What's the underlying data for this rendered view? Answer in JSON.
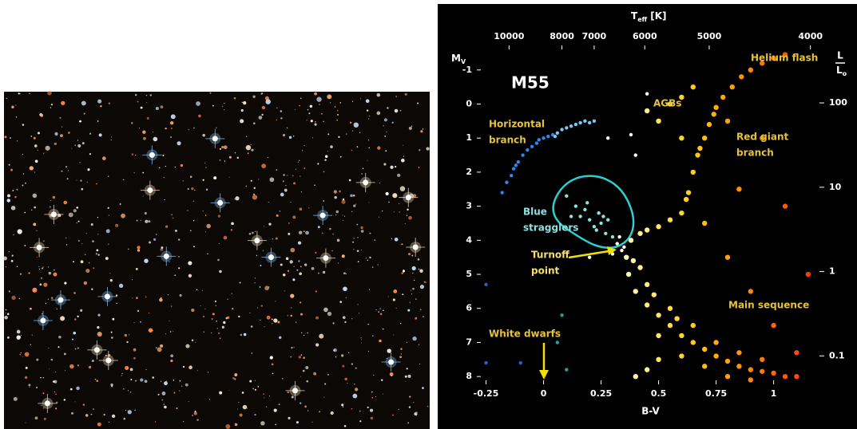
{
  "chart_data": {
    "type": "scatter",
    "xlabel": "B-V",
    "ylabel": [
      "M",
      "V"
    ],
    "x2label": [
      "T",
      "eff",
      " [K]"
    ],
    "y2label": [
      "L",
      "L",
      "o"
    ],
    "xlim": [
      -0.29,
      1.22
    ],
    "ylim": [
      -1.72,
      8.23
    ],
    "y_reversed": true,
    "xticks": [
      -0.25,
      0,
      0.25,
      0.5,
      0.75,
      1
    ],
    "yticks": [
      -1,
      0,
      1,
      2,
      3,
      4,
      5,
      6,
      7,
      8
    ],
    "x2ticks": [
      {
        "value": 10000,
        "b_v": -0.15
      },
      {
        "value": 8000,
        "b_v": 0.08
      },
      {
        "value": 7000,
        "b_v": 0.22
      },
      {
        "value": 6000,
        "b_v": 0.44
      },
      {
        "value": 5000,
        "b_v": 0.72
      },
      {
        "value": 4000,
        "b_v": 1.16
      }
    ],
    "y2lim": [
      0.046,
      480
    ],
    "y2log": true,
    "y2ticks": [
      100,
      10,
      1,
      0.1
    ],
    "color_scale": [
      "#fffbb0",
      "#ffd21a",
      "#ff8a00",
      "#ff3a10"
    ],
    "annotations": [
      {
        "lines": [
          "M55"
        ],
        "color": "#ffffff"
      },
      {
        "lines": [
          "Helium flash"
        ],
        "color": "#e6c23a"
      },
      {
        "lines": [
          "AGBs"
        ],
        "color": "#e6c23a"
      },
      {
        "lines": [
          "Horizontal",
          "branch"
        ],
        "color": "#e6c23a"
      },
      {
        "lines": [
          "Red giant",
          "branch"
        ],
        "color": "#e6c23a"
      },
      {
        "lines": [
          "Blue",
          "stragglers"
        ],
        "color": "#8fe0e0"
      },
      {
        "lines": [
          "Turnoff",
          "point"
        ],
        "color": "#f3e06a"
      },
      {
        "lines": [
          "Main sequence"
        ],
        "color": "#e6c23a"
      },
      {
        "lines": [
          "White dwarfs"
        ],
        "color": "#e6c23a"
      }
    ],
    "series": [
      {
        "color": "#2f86ee",
        "x": [
          -0.18,
          -0.16,
          -0.14,
          -0.13,
          -0.12,
          -0.11,
          -0.09,
          -0.07,
          -0.05,
          -0.03,
          -0.02,
          0,
          0.02,
          0.04
        ],
        "values": [
          2.6,
          2.3,
          2.1,
          1.9,
          1.8,
          1.7,
          1.5,
          1.35,
          1.25,
          1.15,
          1.05,
          1.0,
          0.95,
          0.9
        ]
      },
      {
        "color": "#7ac8f0",
        "x": [
          0.05,
          0.06,
          0.08,
          0.1,
          0.12,
          0.14,
          0.16,
          0.18,
          0.2,
          0.22
        ],
        "values": [
          0.95,
          0.85,
          0.75,
          0.7,
          0.65,
          0.6,
          0.55,
          0.5,
          0.55,
          0.5
        ]
      },
      {
        "color": "#8fe0e0",
        "x": [
          0.1,
          0.14,
          0.16,
          0.18,
          0.2,
          0.22,
          0.24,
          0.25,
          0.27,
          0.28,
          0.3,
          0.19,
          0.23,
          0.12,
          0.26
        ],
        "values": [
          2.7,
          3.0,
          3.3,
          3.1,
          3.4,
          3.6,
          3.2,
          3.5,
          3.8,
          3.4,
          3.9,
          2.9,
          3.7,
          3.3,
          3.3
        ]
      },
      {
        "color": "#2a5fd0",
        "x": [
          -0.25,
          -0.1,
          -0.25
        ],
        "values": [
          7.6,
          7.6,
          5.3
        ]
      },
      {
        "color": "#20a0a0",
        "x": [
          0.08,
          0.1,
          0.06
        ],
        "values": [
          6.2,
          7.8,
          7.0
        ]
      },
      {
        "color": "#ffffff",
        "x": [
          0.32,
          0.34,
          0.33,
          0.35,
          0.3,
          0.4,
          0.28,
          0.38,
          0.2,
          0.45
        ],
        "values": [
          4.1,
          4.3,
          3.9,
          4.2,
          4.4,
          1.5,
          1.0,
          0.9,
          4.5,
          -0.3
        ]
      },
      {
        "color_by_x": true,
        "x": [
          0.42,
          0.55,
          0.6,
          0.63,
          0.65,
          0.67,
          0.7,
          0.72,
          0.75,
          0.78,
          0.82,
          0.86,
          0.9,
          0.95,
          1.0,
          1.05,
          0.62,
          0.68,
          0.74,
          0.38,
          0.45,
          0.5,
          0.36,
          0.37,
          0.4,
          0.45,
          0.5,
          0.55,
          0.6,
          0.65,
          0.7,
          0.75,
          0.8,
          0.85,
          0.9,
          0.95,
          1.0,
          1.05,
          1.1,
          0.45,
          0.55,
          0.65,
          0.75,
          0.85,
          0.95,
          0.5,
          0.6,
          0.7,
          0.8,
          0.9,
          0.42,
          0.39,
          0.48,
          0.58,
          1.1,
          1.0,
          0.9,
          0.8,
          0.7,
          0.85,
          0.6,
          0.8,
          0.45,
          0.4,
          0.5,
          1.15,
          1.05,
          0.95,
          0.55,
          0.6,
          0.65,
          0.5,
          0.45
        ],
        "values": [
          3.8,
          3.4,
          3.2,
          2.6,
          2.0,
          1.5,
          1.0,
          0.6,
          0.1,
          -0.2,
          -0.5,
          -0.8,
          -1.0,
          -1.2,
          -1.35,
          -1.45,
          2.8,
          1.3,
          0.3,
          4.0,
          3.7,
          3.6,
          4.5,
          5.0,
          5.5,
          5.9,
          6.2,
          6.5,
          6.8,
          7.0,
          7.2,
          7.4,
          7.55,
          7.7,
          7.8,
          7.85,
          7.9,
          8.0,
          8.0,
          5.3,
          6.0,
          6.5,
          7.0,
          7.3,
          7.5,
          6.8,
          7.4,
          7.7,
          8.0,
          8.1,
          4.8,
          4.6,
          5.6,
          6.3,
          7.3,
          6.5,
          5.5,
          4.5,
          3.5,
          2.5,
          1.0,
          0.5,
          7.8,
          8.0,
          7.5,
          5.0,
          3.0,
          1.0,
          0.0,
          -0.2,
          -0.5,
          0.5,
          0.2
        ]
      }
    ]
  }
}
